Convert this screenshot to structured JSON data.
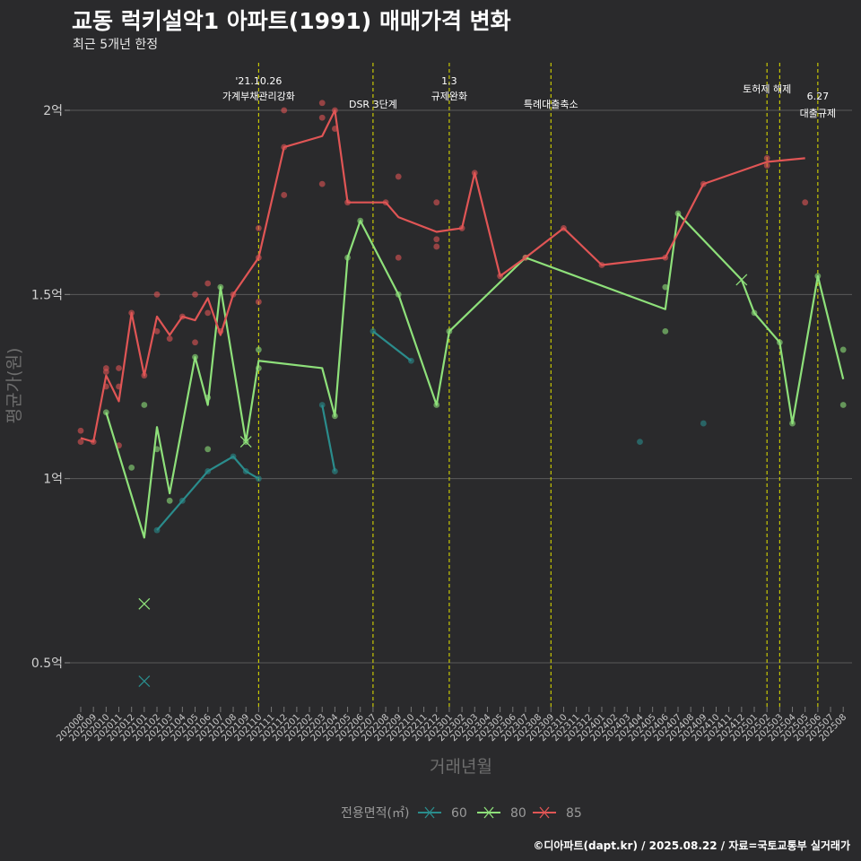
{
  "header": {
    "title": "교동 럭키설악1 아파트(1991) 매매가격 변화",
    "subtitle": "최근 5개년 한정"
  },
  "footer": {
    "caption": "©디아파트(dapt.kr) / 2025.08.22 / 자료=국토교통부 실거래가"
  },
  "colors": {
    "background": "#2a2a2c",
    "grid": "#5a5a5a",
    "event_line": "#d4d400",
    "s60": "#2a8c8c",
    "s80": "#8ee07a",
    "s85": "#e05555"
  },
  "chart_data": {
    "type": "line",
    "title": "교동 럭키설악1 아파트(1991) 매매가격 변화",
    "subtitle": "최근 5개년 한정",
    "xlabel": "거래년월",
    "ylabel": "평균가(원)",
    "ylim": [
      0.37,
      2.2
    ],
    "yticks": [
      0.5,
      1.0,
      1.5,
      2.0
    ],
    "yticklabels": [
      "0.5억",
      "1억",
      "1.5억",
      "2억"
    ],
    "grid": true,
    "legend_position": "bottom",
    "legend_title": "전용면적(㎡)",
    "months": [
      "202008",
      "202009",
      "202010",
      "202011",
      "202012",
      "202101",
      "202102",
      "202103",
      "202104",
      "202105",
      "202106",
      "202107",
      "202108",
      "202109",
      "202110",
      "202111",
      "202112",
      "202201",
      "202202",
      "202203",
      "202204",
      "202205",
      "202206",
      "202207",
      "202208",
      "202209",
      "202210",
      "202211",
      "202212",
      "202301",
      "202302",
      "202303",
      "202304",
      "202305",
      "202306",
      "202307",
      "202308",
      "202309",
      "202310",
      "202311",
      "202312",
      "202401",
      "202402",
      "202403",
      "202404",
      "202405",
      "202406",
      "202407",
      "202408",
      "202409",
      "202410",
      "202411",
      "202412",
      "202501",
      "202502",
      "202503",
      "202504",
      "202505",
      "202506",
      "202507",
      "202508"
    ],
    "events": [
      {
        "month": "202110",
        "label_lines": [
          "'21.10.26",
          "가계부채관리강화"
        ],
        "level": "high"
      },
      {
        "month": "202207",
        "label_lines": [
          "DSR 3단계"
        ],
        "level": "low"
      },
      {
        "month": "202301",
        "label_lines": [
          "1.3",
          "규제완화"
        ],
        "level": "high"
      },
      {
        "month": "202309",
        "label_lines": [
          "특례대출축소"
        ],
        "level": "low"
      },
      {
        "month": "202502",
        "label_lines": [
          "토허제 해제"
        ],
        "level": "mid"
      },
      {
        "month": "202503",
        "label_lines": [],
        "level": "mid"
      },
      {
        "month": "202506",
        "label_lines": [
          "6.27",
          "대출규제"
        ],
        "level": "low2"
      }
    ],
    "series": [
      {
        "name": "60",
        "color": "#2a8c8c",
        "line_segments": [
          [
            [
              "202102",
              0.86
            ],
            [
              "202104",
              0.94
            ],
            [
              "202106",
              1.02
            ],
            [
              "202108",
              1.06
            ],
            [
              "202109",
              1.02
            ],
            [
              "202110",
              1.0
            ]
          ],
          [
            [
              "202203",
              1.2
            ],
            [
              "202204",
              1.02
            ]
          ],
          [
            [
              "202207",
              1.4
            ],
            [
              "202210",
              1.32
            ]
          ]
        ],
        "points": [
          [
            "202102",
            0.86
          ],
          [
            "202104",
            0.94
          ],
          [
            "202106",
            1.02
          ],
          [
            "202108",
            1.06
          ],
          [
            "202109",
            1.02
          ],
          [
            "202110",
            1.0
          ],
          [
            "202203",
            1.2
          ],
          [
            "202204",
            1.02
          ],
          [
            "202207",
            1.4
          ],
          [
            "202210",
            1.32
          ],
          [
            "202404",
            1.1
          ],
          [
            "202409",
            1.15
          ]
        ],
        "cancelled": [
          [
            "202101",
            0.45
          ]
        ]
      },
      {
        "name": "80",
        "color": "#8ee07a",
        "line_segments": [
          [
            [
              "202010",
              1.18
            ],
            [
              "202101",
              0.84
            ],
            [
              "202102",
              1.14
            ],
            [
              "202103",
              0.96
            ],
            [
              "202105",
              1.33
            ],
            [
              "202106",
              1.2
            ],
            [
              "202107",
              1.52
            ],
            [
              "202109",
              1.1
            ],
            [
              "202110",
              1.32
            ],
            [
              "202203",
              1.3
            ],
            [
              "202204",
              1.17
            ],
            [
              "202205",
              1.6
            ],
            [
              "202206",
              1.7
            ],
            [
              "202209",
              1.5
            ],
            [
              "202212",
              1.2
            ],
            [
              "202301",
              1.4
            ],
            [
              "202307",
              1.6
            ],
            [
              "202406",
              1.46
            ],
            [
              "202407",
              1.72
            ],
            [
              "202412",
              1.54
            ],
            [
              "202501",
              1.45
            ],
            [
              "202503",
              1.37
            ],
            [
              "202504",
              1.15
            ],
            [
              "202506",
              1.55
            ],
            [
              "202508",
              1.27
            ]
          ]
        ],
        "points": [
          [
            "202010",
            1.18
          ],
          [
            "202012",
            1.03
          ],
          [
            "202101",
            1.2
          ],
          [
            "202102",
            1.08
          ],
          [
            "202103",
            0.94
          ],
          [
            "202105",
            1.33
          ],
          [
            "202106",
            1.22
          ],
          [
            "202106",
            1.08
          ],
          [
            "202107",
            1.52
          ],
          [
            "202109",
            1.1
          ],
          [
            "202110",
            1.35
          ],
          [
            "202110",
            1.3
          ],
          [
            "202204",
            1.17
          ],
          [
            "202205",
            1.6
          ],
          [
            "202206",
            1.7
          ],
          [
            "202209",
            1.5
          ],
          [
            "202212",
            1.2
          ],
          [
            "202301",
            1.4
          ],
          [
            "202307",
            1.6
          ],
          [
            "202406",
            1.52
          ],
          [
            "202406",
            1.4
          ],
          [
            "202407",
            1.72
          ],
          [
            "202501",
            1.45
          ],
          [
            "202503",
            1.37
          ],
          [
            "202504",
            1.15
          ],
          [
            "202506",
            1.55
          ],
          [
            "202508",
            1.35
          ],
          [
            "202508",
            1.2
          ]
        ],
        "cancelled": [
          [
            "202101",
            0.66
          ],
          [
            "202109",
            1.1
          ],
          [
            "202412",
            1.54
          ]
        ]
      },
      {
        "name": "85",
        "color": "#e05555",
        "line_segments": [
          [
            [
              "202008",
              1.11
            ],
            [
              "202009",
              1.1
            ],
            [
              "202010",
              1.28
            ],
            [
              "202011",
              1.21
            ],
            [
              "202012",
              1.45
            ],
            [
              "202101",
              1.28
            ],
            [
              "202102",
              1.44
            ],
            [
              "202103",
              1.39
            ],
            [
              "202104",
              1.44
            ],
            [
              "202105",
              1.43
            ],
            [
              "202106",
              1.49
            ],
            [
              "202107",
              1.39
            ],
            [
              "202108",
              1.5
            ],
            [
              "202110",
              1.6
            ],
            [
              "202112",
              1.9
            ],
            [
              "202203",
              1.93
            ],
            [
              "202204",
              2.0
            ],
            [
              "202205",
              1.75
            ],
            [
              "202208",
              1.75
            ],
            [
              "202209",
              1.71
            ],
            [
              "202212",
              1.67
            ],
            [
              "202302",
              1.68
            ],
            [
              "202303",
              1.83
            ],
            [
              "202305",
              1.55
            ],
            [
              "202307",
              1.6
            ],
            [
              "202310",
              1.68
            ],
            [
              "202401",
              1.58
            ],
            [
              "202406",
              1.6
            ],
            [
              "202409",
              1.8
            ],
            [
              "202502",
              1.86
            ],
            [
              "202505",
              1.87
            ]
          ]
        ],
        "points": [
          [
            "202008",
            1.13
          ],
          [
            "202008",
            1.1
          ],
          [
            "202009",
            1.1
          ],
          [
            "202010",
            1.3
          ],
          [
            "202010",
            1.29
          ],
          [
            "202010",
            1.25
          ],
          [
            "202011",
            1.3
          ],
          [
            "202011",
            1.25
          ],
          [
            "202011",
            1.09
          ],
          [
            "202012",
            1.45
          ],
          [
            "202101",
            1.28
          ],
          [
            "202102",
            1.5
          ],
          [
            "202102",
            1.4
          ],
          [
            "202103",
            1.38
          ],
          [
            "202104",
            1.44
          ],
          [
            "202105",
            1.5
          ],
          [
            "202105",
            1.37
          ],
          [
            "202106",
            1.53
          ],
          [
            "202106",
            1.45
          ],
          [
            "202107",
            1.4
          ],
          [
            "202108",
            1.5
          ],
          [
            "202110",
            1.68
          ],
          [
            "202110",
            1.6
          ],
          [
            "202110",
            1.48
          ],
          [
            "202112",
            2.0
          ],
          [
            "202112",
            1.9
          ],
          [
            "202112",
            1.77
          ],
          [
            "202203",
            2.02
          ],
          [
            "202203",
            1.98
          ],
          [
            "202203",
            1.8
          ],
          [
            "202204",
            2.0
          ],
          [
            "202204",
            1.95
          ],
          [
            "202205",
            1.75
          ],
          [
            "202208",
            1.75
          ],
          [
            "202209",
            1.82
          ],
          [
            "202209",
            1.6
          ],
          [
            "202212",
            1.75
          ],
          [
            "202212",
            1.65
          ],
          [
            "202212",
            1.63
          ],
          [
            "202302",
            1.68
          ],
          [
            "202303",
            1.83
          ],
          [
            "202305",
            1.55
          ],
          [
            "202307",
            1.6
          ],
          [
            "202310",
            1.68
          ],
          [
            "202401",
            1.58
          ],
          [
            "202406",
            1.6
          ],
          [
            "202409",
            1.8
          ],
          [
            "202502",
            1.87
          ],
          [
            "202502",
            1.85
          ],
          [
            "202505",
            1.75
          ]
        ],
        "cancelled": []
      }
    ]
  }
}
